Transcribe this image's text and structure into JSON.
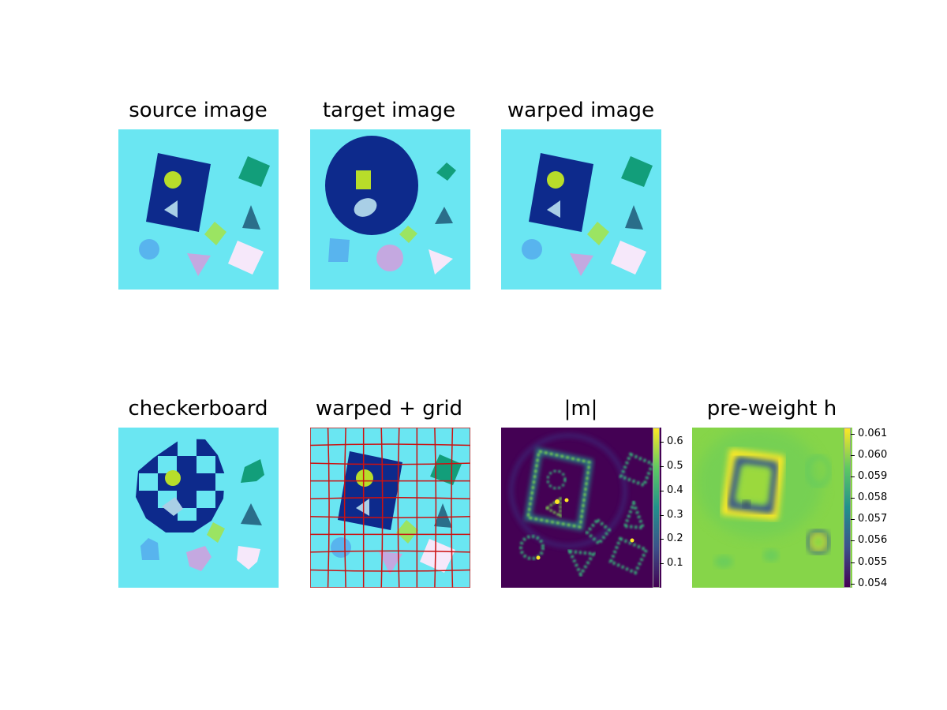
{
  "panels": {
    "source": {
      "title": "source image"
    },
    "target": {
      "title": "target image"
    },
    "warped": {
      "title": "warped image"
    },
    "checkerboard": {
      "title": "checkerboard"
    },
    "warped_grid": {
      "title": "warped + grid"
    },
    "m_mag": {
      "title": "|m|"
    },
    "preweight": {
      "title": "pre-weight h"
    }
  },
  "colors": {
    "background_cyan": "#6ae6f2",
    "dark_blue": "#0d2a8c",
    "lime": "#b8dd2a",
    "light_blue": "#a9cfe6",
    "teal_green": "#129e7a",
    "slate_teal": "#2a6e8a",
    "light_green": "#9be462",
    "sky_blue": "#58b4ee",
    "lavender": "#c4a8e0",
    "pale_pink": "#f6e8fa",
    "grid_red": "#cc1111",
    "viridis_dark": "#440154",
    "viridis_green": "#7ad151",
    "viridis_yellow": "#fde725"
  },
  "colorbars": {
    "m_mag": {
      "ticks": [
        "0.6",
        "0.5",
        "0.4",
        "0.3",
        "0.2",
        "0.1"
      ],
      "min": 0.0,
      "max": 0.66
    },
    "preweight": {
      "ticks": [
        "0.061",
        "0.060",
        "0.059",
        "0.058",
        "0.057",
        "0.056",
        "0.055",
        "0.054"
      ],
      "min": 0.0538,
      "max": 0.0613
    }
  }
}
